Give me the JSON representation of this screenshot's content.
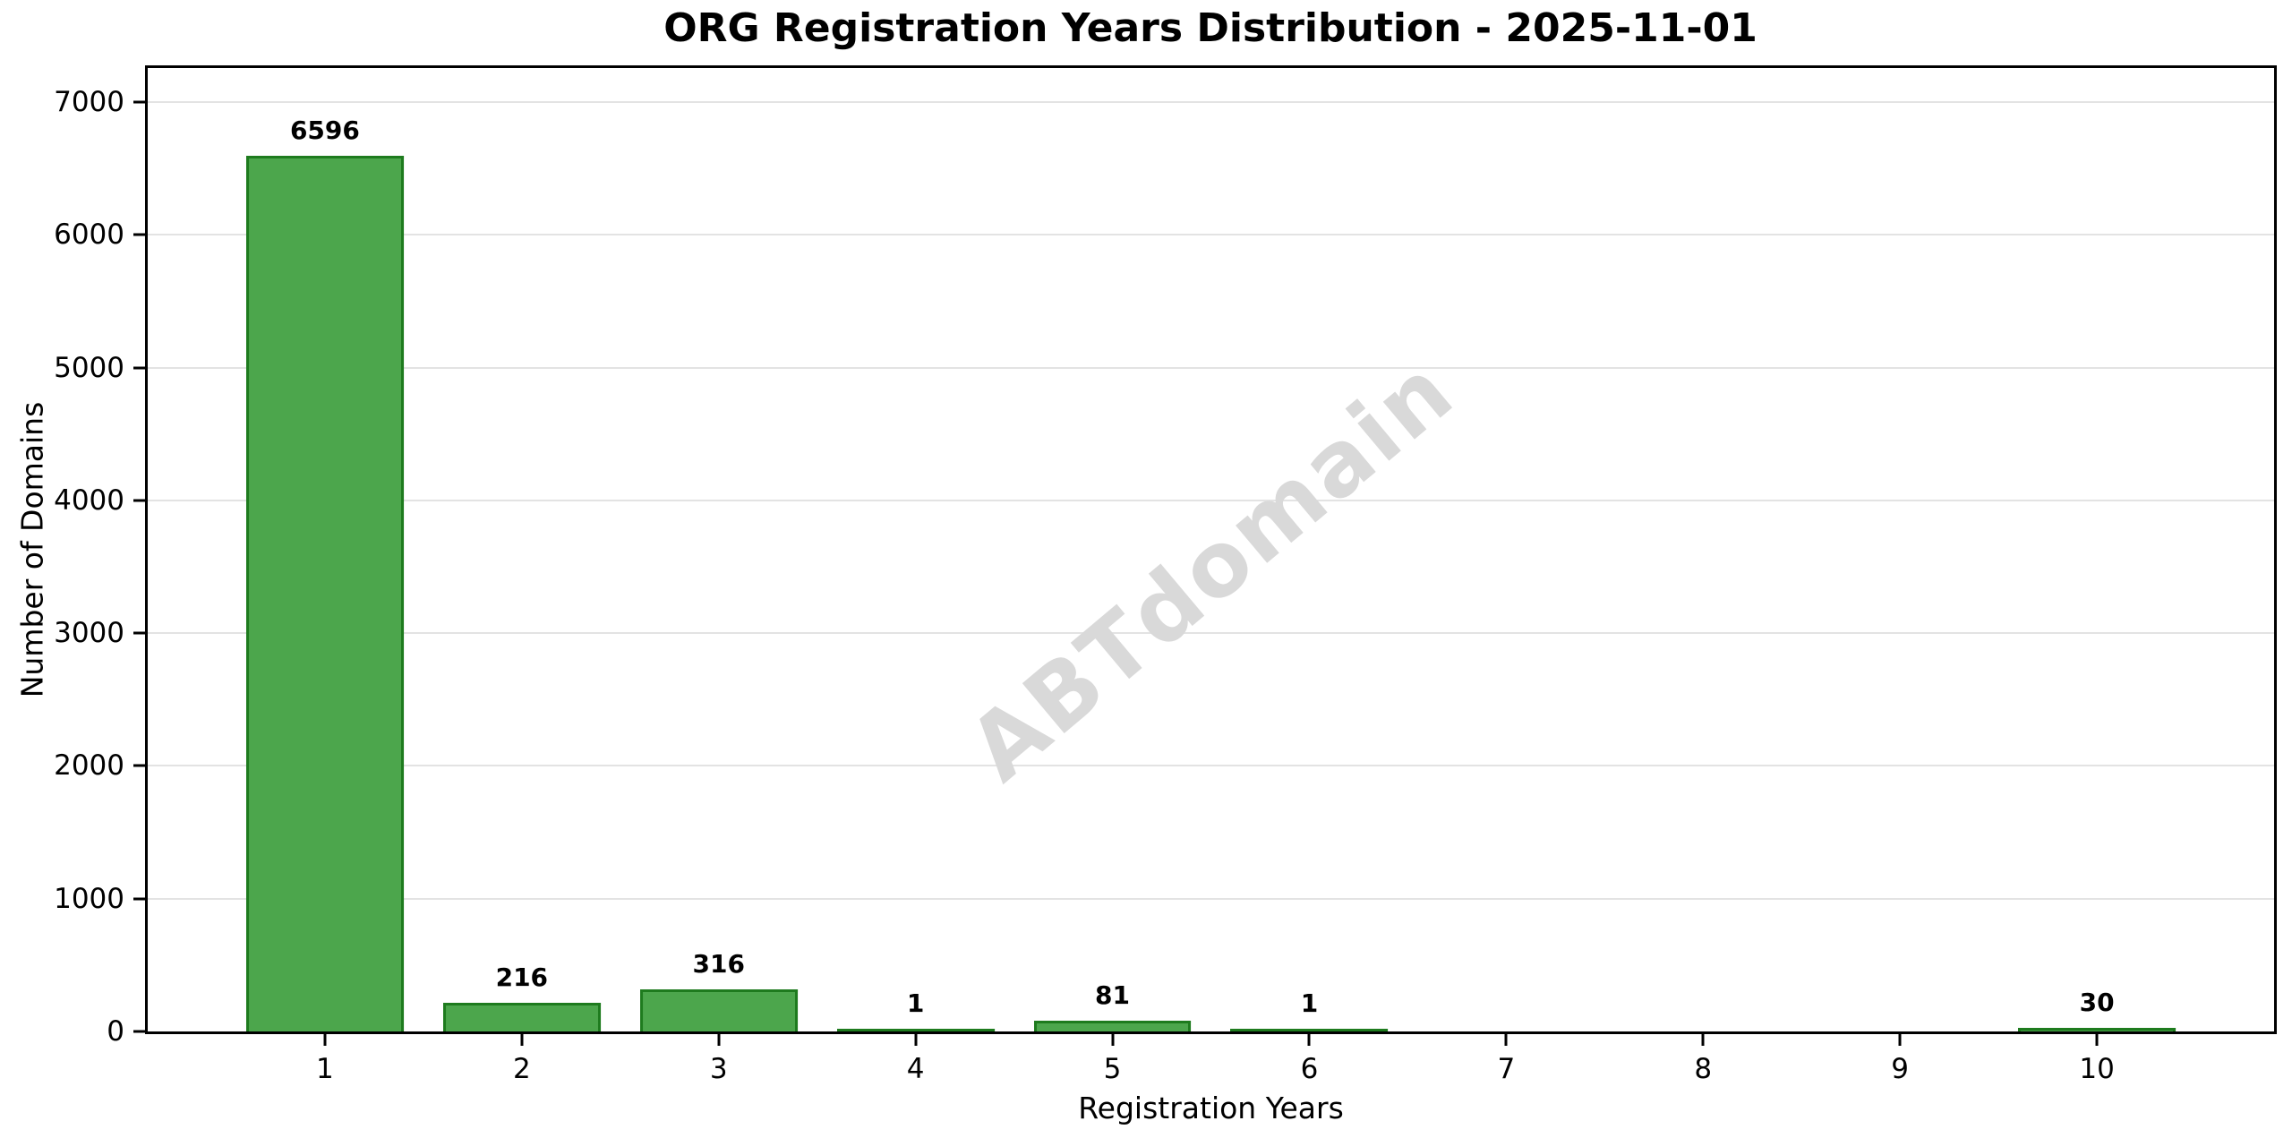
{
  "figure": {
    "background_color": "#FFFFFF",
    "axes_edge_color": "#000000"
  },
  "watermark": {
    "text": "ABTdomain",
    "color": "#D9D9D9",
    "angle_deg": -40
  },
  "chart_data": {
    "type": "bar",
    "title": "ORG Registration Years Distribution - 2025-11-01",
    "xlabel": "Registration Years",
    "ylabel": "Number of Domains",
    "categories": [
      "1",
      "2",
      "3",
      "4",
      "5",
      "6",
      "7",
      "8",
      "9",
      "10"
    ],
    "values": [
      6596,
      216,
      316,
      1,
      81,
      1,
      0,
      0,
      0,
      30
    ],
    "bar_labels": [
      "6596",
      "216",
      "316",
      "1",
      "81",
      "1",
      "",
      "",
      "",
      "30"
    ],
    "yticks": [
      0,
      1000,
      2000,
      3000,
      4000,
      5000,
      6000,
      7000
    ],
    "ylim": [
      0,
      7256
    ],
    "xlim_units": [
      0.1,
      10.9
    ],
    "bar_width_units": 0.8,
    "grid": "horizontal",
    "legend": "none",
    "bar_color": "#4CA64C",
    "bar_edge_color": "#1E7B1E",
    "grid_color": "#E3E3E3",
    "label_color": "#000000"
  }
}
